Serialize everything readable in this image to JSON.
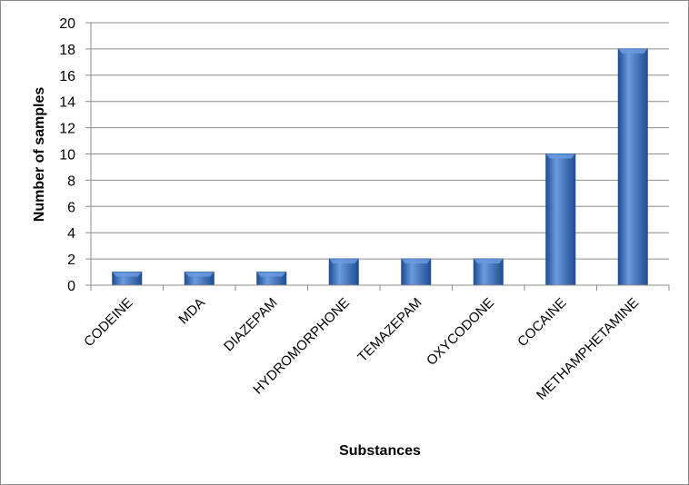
{
  "chart_data": {
    "type": "bar",
    "title": "",
    "xlabel": "Substances",
    "ylabel": "Number of samples",
    "categories": [
      "CODEINE",
      "MDA",
      "DIAZEPAM",
      "HYDROMORPHONE",
      "TEMAZEPAM",
      "OXYCODONE",
      "COCAINE",
      "METHAMPHETAMINE"
    ],
    "values": [
      1,
      1,
      1,
      2,
      2,
      2,
      10,
      18
    ],
    "ylim": [
      0,
      20
    ],
    "yticks": [
      0,
      2,
      4,
      6,
      8,
      10,
      12,
      14,
      16,
      18,
      20
    ],
    "grid": true,
    "legend": "none",
    "colors": {
      "bar": "#3a74c2",
      "bar_dark": "#1f4f91",
      "bar_light": "#6b9ae0",
      "grid": "#8c8c8c"
    }
  }
}
